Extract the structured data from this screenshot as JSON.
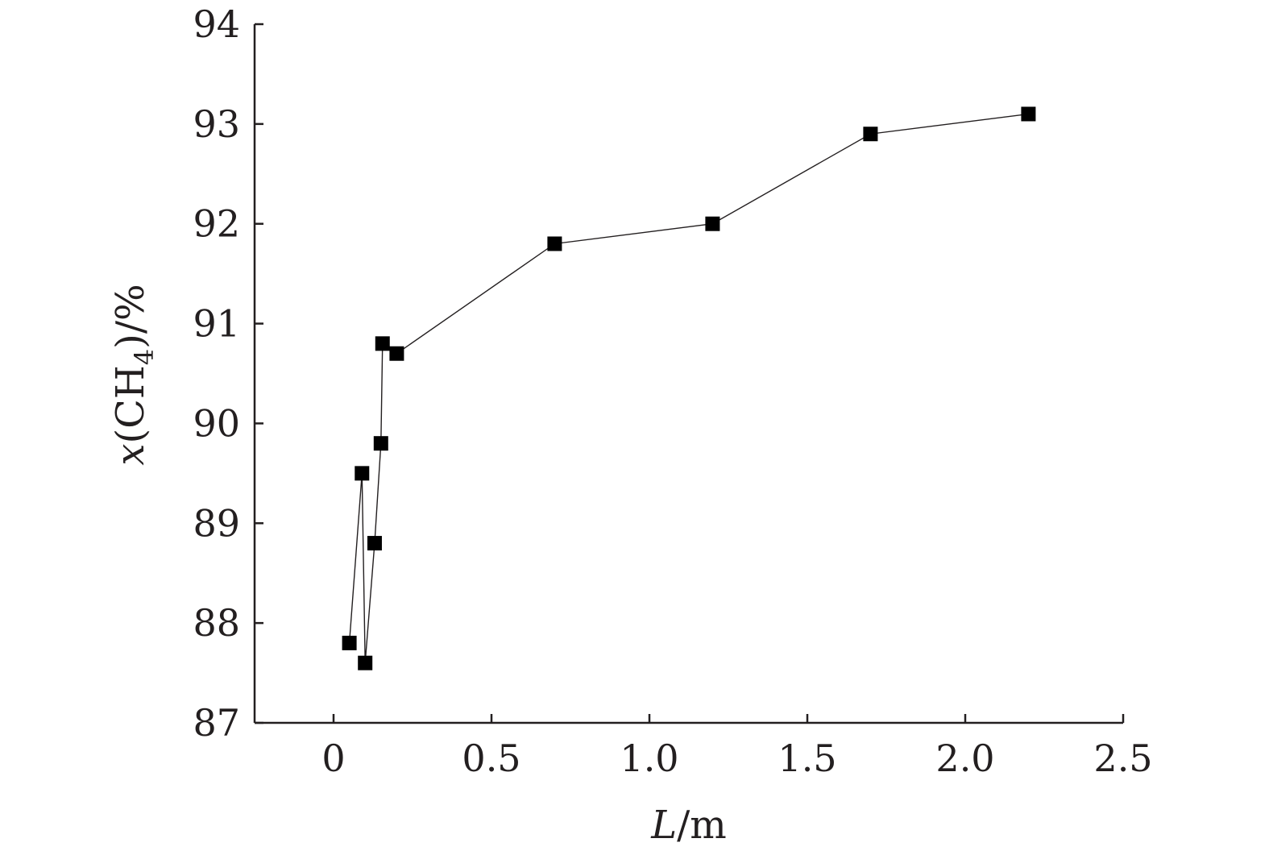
{
  "chart_data": {
    "type": "line",
    "title": "",
    "xlabel": {
      "italic": "L",
      "rest": "/m"
    },
    "ylabel": {
      "italic": "x",
      "open": "(CH",
      "sub": "4",
      "close": ")/%"
    },
    "xlim": [
      -0.25,
      2.5
    ],
    "ylim": [
      87,
      94
    ],
    "x_ticks": [
      0,
      0.5,
      1.0,
      1.5,
      2.0,
      2.5
    ],
    "x_tick_labels": [
      "0",
      "0.5",
      "1.0",
      "1.5",
      "2.0",
      "2.5"
    ],
    "y_ticks": [
      87,
      88,
      89,
      90,
      91,
      92,
      93,
      94
    ],
    "y_tick_labels": [
      "87",
      "88",
      "89",
      "90",
      "91",
      "92",
      "93",
      "94"
    ],
    "grid": false,
    "series": [
      {
        "marker": "square",
        "color": "#000000",
        "points": [
          {
            "x": 0.05,
            "y": 87.8
          },
          {
            "x": 0.09,
            "y": 89.5
          },
          {
            "x": 0.1,
            "y": 87.6
          },
          {
            "x": 0.13,
            "y": 88.8
          },
          {
            "x": 0.15,
            "y": 89.8
          },
          {
            "x": 0.155,
            "y": 90.8
          },
          {
            "x": 0.2,
            "y": 90.7
          },
          {
            "x": 0.7,
            "y": 91.8
          },
          {
            "x": 1.2,
            "y": 92.0
          },
          {
            "x": 1.7,
            "y": 92.9
          },
          {
            "x": 2.2,
            "y": 93.1
          }
        ]
      }
    ]
  }
}
